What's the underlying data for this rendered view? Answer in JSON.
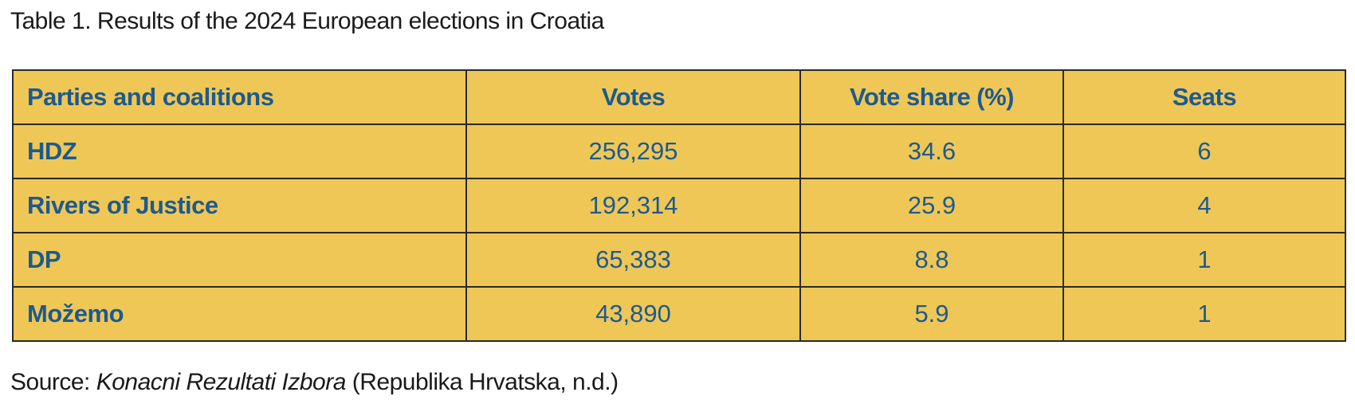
{
  "title": "Table 1. Results of the 2024 European elections in Croatia",
  "table": {
    "header": [
      "Parties and coalitions",
      "Votes",
      "Vote share (%)",
      "Seats"
    ],
    "rows": [
      [
        "HDZ",
        "256,295",
        "34.6",
        "6"
      ],
      [
        "Rivers of Justice",
        "192,314",
        "25.9",
        "4"
      ],
      [
        "DP",
        "65,383",
        "8.8",
        "1"
      ],
      [
        "Možemo",
        "43,890",
        "5.9",
        "1"
      ]
    ]
  },
  "source": {
    "lead": "Source:",
    "work": "Konacni Rezultati Izbora",
    "rest": "(Republika Hrvatska, n.d.)"
  }
}
